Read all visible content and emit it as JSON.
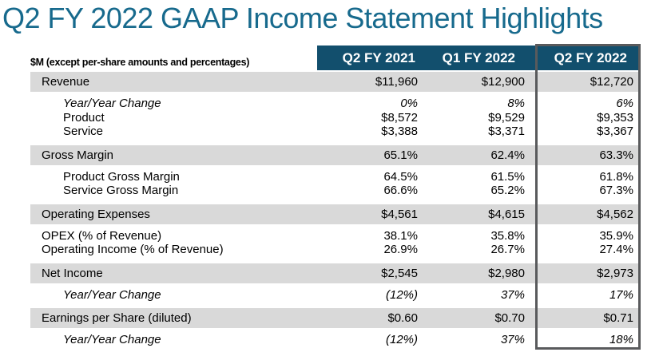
{
  "title": "Q2 FY 2022 GAAP Income Statement Highlights",
  "colors": {
    "title_text": "#176a8d",
    "header_background": "#124f6d",
    "header_text": "#ffffff",
    "band_background": "#d9d9d9",
    "highlight_border": "#595a5c"
  },
  "table": {
    "note": "$M (except per-share amounts and percentages)",
    "columns": [
      "Q2 FY 2021",
      "Q1 FY 2022",
      "Q2 FY 2022"
    ],
    "highlighted_column": "Q2 FY 2022",
    "rows": [
      {
        "type": "band",
        "label": "Revenue",
        "values": [
          "$11,960",
          "$12,900",
          "$12,720"
        ]
      },
      {
        "type": "group",
        "rows": [
          {
            "label": "Year/Year Change",
            "italic": true,
            "indent": true,
            "values": [
              "0%",
              "8%",
              "6%"
            ]
          },
          {
            "label": "Product",
            "indent": true,
            "values": [
              "$8,572",
              "$9,529",
              "$9,353"
            ]
          },
          {
            "label": "Service",
            "indent": true,
            "values": [
              "$3,388",
              "$3,371",
              "$3,367"
            ]
          }
        ]
      },
      {
        "type": "band",
        "label": "Gross Margin",
        "values": [
          "65.1%",
          "62.4%",
          "63.3%"
        ]
      },
      {
        "type": "group",
        "rows": [
          {
            "label": "Product Gross Margin",
            "indent": true,
            "values": [
              "64.5%",
              "61.5%",
              "61.8%"
            ]
          },
          {
            "label": "Service Gross Margin",
            "indent": true,
            "values": [
              "66.6%",
              "65.2%",
              "67.3%"
            ]
          }
        ]
      },
      {
        "type": "band",
        "label": "Operating Expenses",
        "values": [
          "$4,561",
          "$4,615",
          "$4,562"
        ]
      },
      {
        "type": "group",
        "rows": [
          {
            "label": "OPEX (% of Revenue)",
            "indent": false,
            "values": [
              "38.1%",
              "35.8%",
              "35.9%"
            ]
          },
          {
            "label": "Operating Income (% of Revenue)",
            "indent": false,
            "values": [
              "26.9%",
              "26.7%",
              "27.4%"
            ]
          }
        ]
      },
      {
        "type": "band",
        "label": "Net Income",
        "values": [
          "$2,545",
          "$2,980",
          "$2,973"
        ]
      },
      {
        "type": "group",
        "rows": [
          {
            "label": "Year/Year Change",
            "italic": true,
            "indent": true,
            "values": [
              "(12%)",
              "37%",
              "17%"
            ]
          }
        ]
      },
      {
        "type": "band",
        "label": "Earnings per Share (diluted)",
        "values": [
          "$0.60",
          "$0.70",
          "$0.71"
        ]
      },
      {
        "type": "group",
        "rows": [
          {
            "label": "Year/Year Change",
            "italic": true,
            "indent": true,
            "values": [
              "(12%)",
              "37%",
              "18%"
            ]
          }
        ]
      }
    ]
  }
}
